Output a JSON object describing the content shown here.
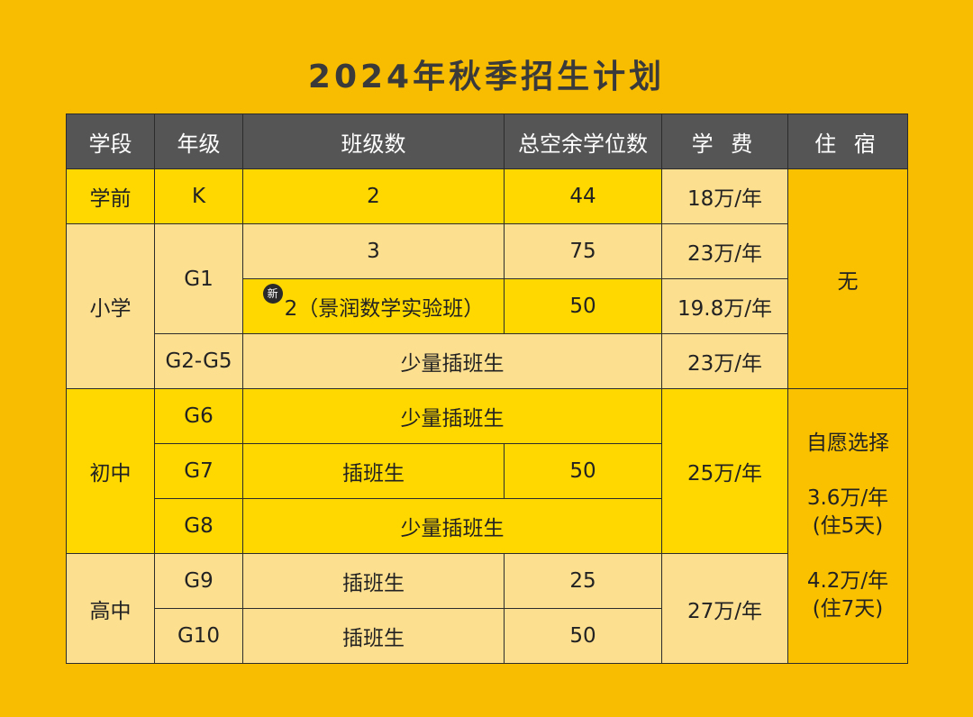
{
  "title": "2024年秋季招生计划",
  "colors": {
    "background": "#F8BC00",
    "header": "#555555",
    "bright_yellow": "#FFD800",
    "pale_yellow": "#FDDF90",
    "orange_yellow": "#F9C100"
  },
  "headers": [
    "学段",
    "年级",
    "班级数",
    "总空余学位数",
    "学 费",
    "住 宿"
  ],
  "stages": {
    "preschool": "学前",
    "primary": "小学",
    "middle": "初中",
    "high": "高中"
  },
  "rows": {
    "k": {
      "grade": "K",
      "classes": "2",
      "seats": "44",
      "fee": "18万/年"
    },
    "g1a": {
      "grade": "G1",
      "classes": "3",
      "seats": "75",
      "fee": "23万/年"
    },
    "g1b": {
      "badge": "新",
      "classes": "2（景润数学实验班）",
      "seats": "50",
      "fee": "19.8万/年"
    },
    "g2g5": {
      "grade": "G2-G5",
      "classes": "少量插班生",
      "fee": "23万/年"
    },
    "g6": {
      "grade": "G6",
      "classes": "少量插班生"
    },
    "g7": {
      "grade": "G7",
      "classes": "插班生",
      "seats": "50"
    },
    "g8": {
      "grade": "G8",
      "classes": "少量插班生"
    },
    "g9": {
      "grade": "G9",
      "classes": "插班生",
      "seats": "25"
    },
    "g10": {
      "grade": "G10",
      "classes": "插班生",
      "seats": "50"
    }
  },
  "fees": {
    "middle": "25万/年",
    "high": "27万/年"
  },
  "boarding": {
    "none": "无",
    "optional": "自愿选择",
    "opt1_price": "3.6万/年",
    "opt1_note": "(住5天)",
    "opt2_price": "4.2万/年",
    "opt2_note": "(住7天)"
  }
}
